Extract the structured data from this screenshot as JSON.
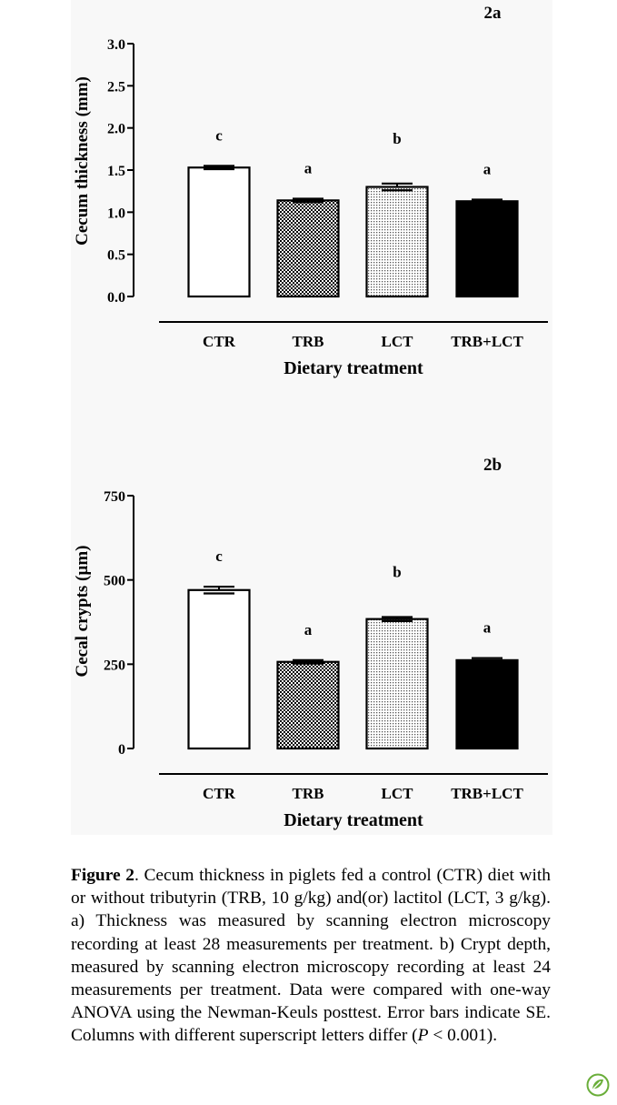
{
  "figure": {
    "caption_label": "Figure 2",
    "caption_text": ". Cecum thickness in piglets fed a control (CTR) diet with or without tributyrin (TRB, 10 g/kg) and(or) lactitol (LCT, 3 g/kg). a) Thickness was measured by scanning electron microscopy recording at least 28 measurements per treatment. b) Crypt depth, measured by scanning electron microscopy recording at least 24 measurements per treatment. Data were compared with one-way ANOVA using the Newman-Keuls posttest. Error bars indicate SE. Columns with different superscript letters differ (",
    "caption_p": "P",
    "caption_end": " < 0.001)."
  },
  "chart_data": [
    {
      "type": "bar",
      "panel_label": "2a",
      "categories": [
        "CTR",
        "TRB",
        "LCT",
        "TRB+LCT"
      ],
      "values": [
        1.53,
        1.14,
        1.3,
        1.13
      ],
      "errors": [
        0.02,
        0.02,
        0.04,
        0.02
      ],
      "significance_letters": [
        "c",
        "a",
        "b",
        "a"
      ],
      "fills": [
        "white",
        "dots",
        "fine-dots",
        "black"
      ],
      "ylabel": "Cecum thickness (mm)",
      "xlabel": "Dietary treatment",
      "yticks": [
        "0.0",
        "0.5",
        "1.0",
        "1.5",
        "2.0",
        "2.5",
        "3.0"
      ],
      "ylim": [
        0,
        3.0
      ],
      "grid": false
    },
    {
      "type": "bar",
      "panel_label": "2b",
      "categories": [
        "CTR",
        "TRB",
        "LCT",
        "TRB+LCT"
      ],
      "values": [
        470,
        257,
        384,
        262
      ],
      "errors": [
        10,
        5,
        6,
        6
      ],
      "significance_letters": [
        "c",
        "a",
        "b",
        "a"
      ],
      "fills": [
        "white",
        "dots",
        "fine-dots",
        "black"
      ],
      "ylabel": "Cecal crypts (µm)",
      "xlabel": "Dietary treatment",
      "yticks": [
        "0",
        "250",
        "500",
        "750"
      ],
      "ylim": [
        0,
        750
      ],
      "grid": false
    }
  ],
  "colors": {
    "background": "#f8f8f8",
    "bar_outline": "#000000"
  },
  "icons": {
    "logo": "leaf-badge-icon"
  }
}
